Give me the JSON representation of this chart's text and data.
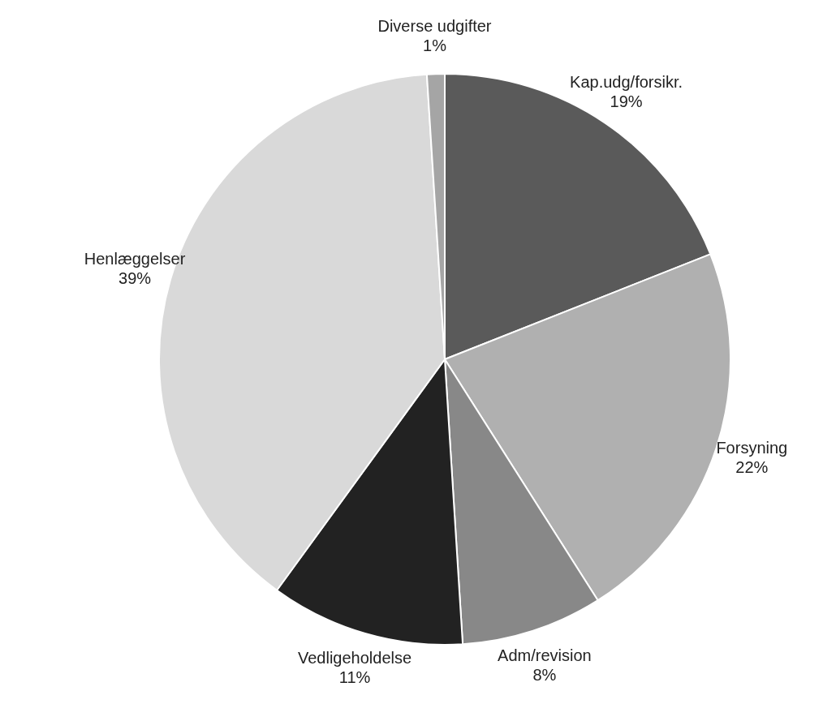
{
  "chart_data": {
    "type": "pie",
    "categories": [
      "Kap.udg/forsikr.",
      "Forsyning",
      "Adm/revision",
      "Vedligeholdelse",
      "Henlæggelser",
      "Diverse udgifter"
    ],
    "values": [
      19,
      22,
      8,
      11,
      39,
      1
    ],
    "value_labels": [
      "19%",
      "22%",
      "8%",
      "11%",
      "39%",
      "1%"
    ],
    "colors": [
      "#5a5a5a",
      "#b0b0b0",
      "#888888",
      "#222222",
      "#d9d9d9",
      "#a5a5a5"
    ],
    "legend": false
  }
}
